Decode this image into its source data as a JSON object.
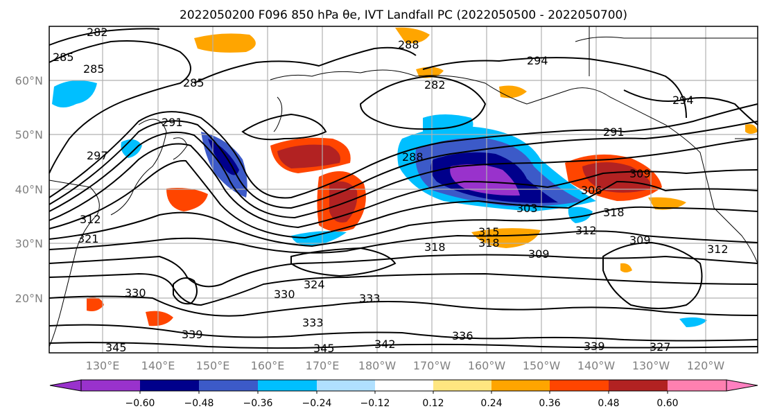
{
  "title": "2022050200 F096 850 hPa θe, IVT Landfall PC (2022050500 - 2022050700)",
  "map": {
    "lon_labels": [
      "130°E",
      "140°E",
      "150°E",
      "160°E",
      "170°E",
      "180°W",
      "170°W",
      "160°W",
      "150°W",
      "140°W",
      "130°W",
      "120°W"
    ],
    "lat_labels": [
      "60°N",
      "50°N",
      "40°N",
      "30°N",
      "20°N"
    ],
    "gridline_color": "#b0b0b0"
  },
  "contour_labels": [
    "282",
    "285",
    "285",
    "285",
    "291",
    "288",
    "294",
    "282",
    "294",
    "291",
    "297",
    "288",
    "303",
    "306",
    "309",
    "312",
    "312",
    "315",
    "318",
    "318",
    "318",
    "309",
    "309",
    "312",
    "321",
    "324",
    "330",
    "330",
    "333",
    "333",
    "336",
    "339",
    "339",
    "342",
    "345",
    "345",
    "327"
  ],
  "colorbar": {
    "tick_labels": [
      "−0.60",
      "−0.48",
      "−0.36",
      "−0.24",
      "−0.12",
      "0.12",
      "0.24",
      "0.36",
      "0.48",
      "0.60"
    ],
    "colors": [
      "#9932cc",
      "#00008b",
      "#3c5ac8",
      "#00bfff",
      "#b0e0ff",
      "#ffffff",
      "#ffe680",
      "#ffa500",
      "#ff4500",
      "#b22222",
      "#ff80b0",
      "#ff80c0"
    ]
  }
}
